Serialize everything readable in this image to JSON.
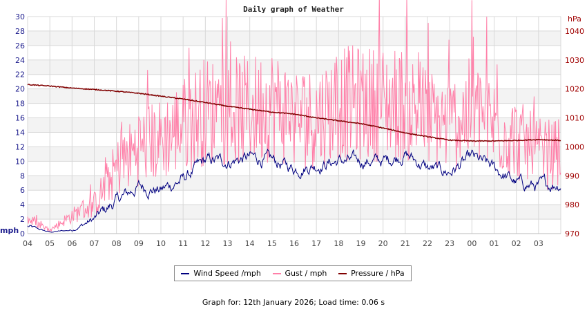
{
  "chart_data": {
    "type": "line",
    "title": "Daily graph of Weather",
    "x_ticks": [
      "04",
      "05",
      "06",
      "07",
      "08",
      "09",
      "10",
      "11",
      "12",
      "13",
      "14",
      "15",
      "16",
      "17",
      "18",
      "19",
      "20",
      "21",
      "22",
      "23",
      "00",
      "01",
      "02",
      "03"
    ],
    "y_left": {
      "label": "mph",
      "range": [
        0,
        30
      ],
      "ticks": [
        0,
        2,
        4,
        6,
        8,
        10,
        12,
        14,
        16,
        18,
        20,
        22,
        24,
        26,
        28,
        30
      ],
      "color": "#1a1a8c"
    },
    "y_right": {
      "label": "hPa",
      "range": [
        970,
        1045
      ],
      "ticks": [
        970,
        980,
        990,
        1000,
        1010,
        1020,
        1030,
        1040
      ],
      "color": "#a00000"
    },
    "grid": true,
    "legend_placement": "bottom",
    "series": [
      {
        "name": "Wind Speed /mph",
        "axis": "left",
        "color": "#000080",
        "values": [
          1,
          0.2,
          0.5,
          2,
          4.5,
          6.5,
          6,
          7.5,
          10,
          10,
          10.5,
          10,
          9,
          9.5,
          10,
          10,
          10,
          11,
          9,
          8.5,
          10.5,
          9,
          7,
          6.5,
          7
        ]
      },
      {
        "name": "Gust / mph",
        "axis": "left",
        "color": "#ff7fa8",
        "values": [
          2,
          0.5,
          2.5,
          4,
          9,
          12,
          13,
          15,
          17,
          17,
          17,
          18,
          16,
          16,
          18,
          18,
          18,
          18,
          16,
          15,
          17,
          15,
          13,
          11,
          11
        ]
      },
      {
        "name": "Pressure / hPa",
        "axis": "right",
        "color": "#800000",
        "values": [
          1021.5,
          1021,
          1020.3,
          1019.8,
          1019.2,
          1018.5,
          1017.5,
          1016.5,
          1015.3,
          1014,
          1013,
          1012,
          1011.3,
          1010,
          1009,
          1008,
          1006.5,
          1004.8,
          1003.5,
          1002.3,
          1002,
          1002,
          1002.2,
          1002.5,
          1002.2
        ]
      }
    ]
  },
  "footer": "Graph for: 12th January 2026; Load time: 0.06 s"
}
